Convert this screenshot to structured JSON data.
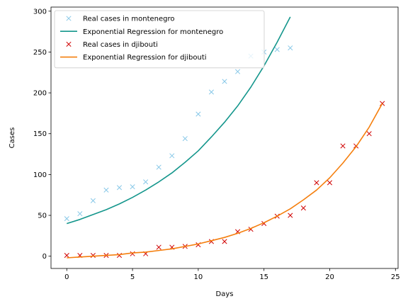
{
  "chart_data": {
    "type": "scatter",
    "xlabel": "Days",
    "ylabel": "Cases",
    "xlim": [
      -1.2,
      25.2
    ],
    "ylim": [
      -15,
      305
    ],
    "xticks": [
      0,
      5,
      10,
      15,
      20,
      25
    ],
    "yticks": [
      0,
      50,
      100,
      150,
      200,
      250,
      300
    ],
    "legend_position": "top-left",
    "grid": false,
    "series": [
      {
        "name": "Real cases in montenegro",
        "kind": "markers",
        "marker": "x",
        "color": "#88c8e8",
        "x": [
          0,
          1,
          2,
          3,
          4,
          5,
          6,
          7,
          8,
          9,
          10,
          11,
          12,
          13,
          14,
          15,
          16,
          17
        ],
        "y": [
          46,
          52,
          68,
          81,
          84,
          85,
          91,
          109,
          123,
          144,
          174,
          201,
          214,
          226,
          245,
          250,
          253,
          255
        ]
      },
      {
        "name": "Exponential Regression for montenegro",
        "kind": "line",
        "color": "#14968c",
        "x": [
          0,
          1,
          2,
          3,
          4,
          5,
          6,
          7,
          8,
          9,
          10,
          11,
          12,
          13,
          14,
          15,
          16,
          17
        ],
        "y": [
          40,
          45,
          51,
          57,
          64,
          72,
          81,
          91,
          102,
          115,
          129,
          146,
          164,
          184,
          207,
          233,
          262,
          293
        ]
      },
      {
        "name": "Real cases in djibouti",
        "kind": "markers",
        "marker": "x",
        "color": "#d00000",
        "x": [
          0,
          1,
          2,
          3,
          4,
          5,
          6,
          7,
          8,
          9,
          10,
          11,
          12,
          13,
          14,
          15,
          16,
          17,
          18,
          19,
          20,
          21,
          22,
          23,
          24
        ],
        "y": [
          1,
          1,
          1,
          1,
          1,
          3,
          3,
          11,
          11,
          12,
          14,
          18,
          18,
          30,
          33,
          40,
          49,
          50,
          59,
          90,
          90,
          135,
          135,
          150,
          187
        ]
      },
      {
        "name": "Exponential Regression for djibouti",
        "kind": "line",
        "color": "#f57f0e",
        "x": [
          0,
          1,
          2,
          3,
          4,
          5,
          6,
          7,
          8,
          9,
          10,
          11,
          12,
          13,
          14,
          15,
          16,
          17,
          18,
          19,
          20,
          21,
          22,
          23,
          24
        ],
        "y": [
          -2,
          -1,
          0,
          1,
          2,
          4,
          5,
          7,
          9,
          12,
          15,
          19,
          23,
          28,
          34,
          41,
          49,
          58,
          69,
          81,
          96,
          114,
          134,
          158,
          187
        ]
      }
    ]
  }
}
